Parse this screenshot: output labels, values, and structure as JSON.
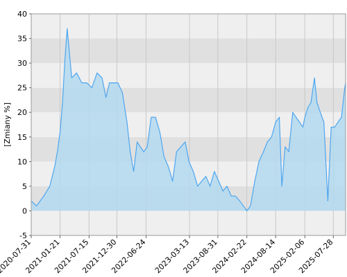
{
  "chart_data": {
    "type": "area",
    "title": "",
    "xlabel": "",
    "ylabel": "[Zmiany %]",
    "ylim": [
      -5,
      40
    ],
    "yticks": [
      -5,
      0,
      5,
      10,
      15,
      20,
      25,
      30,
      35,
      40
    ],
    "yticklabels": [
      "-5",
      "0",
      "5",
      "10",
      "15",
      "20",
      "25",
      "30",
      "35",
      "40"
    ],
    "xlim": [
      "2020-07-31",
      "2025-10-10"
    ],
    "xticks": [
      "2020-07-31",
      "2021-01-21",
      "2021-07-15",
      "2021-12-30",
      "2022-06-24",
      "2023-03-13",
      "2023-08-31",
      "2024-02-22",
      "2024-08-14",
      "2025-02-06",
      "2025-07-28"
    ],
    "grid": true,
    "legend": "none",
    "colors": {
      "line": "#4da6f0",
      "fill": "#b3d9ef",
      "band_light": "#efefef",
      "band_dark": "#e0e0e0",
      "grid_v": "#c8c8c8",
      "frame": "#999999"
    },
    "series": [
      {
        "x": [
          "2020-07-31",
          "2020-09-01",
          "2020-10-15",
          "2020-11-20",
          "2020-12-20",
          "2021-01-05",
          "2021-01-21",
          "2021-02-05",
          "2021-02-18",
          "2021-03-05",
          "2021-04-01",
          "2021-05-01",
          "2021-06-01",
          "2021-07-01",
          "2021-08-01",
          "2021-09-01",
          "2021-10-01",
          "2021-10-25",
          "2021-11-15",
          "2021-12-10",
          "2022-01-05",
          "2022-02-01",
          "2022-03-01",
          "2022-03-20",
          "2022-04-10",
          "2022-05-01",
          "2022-05-20",
          "2022-06-10",
          "2022-07-01",
          "2022-07-25",
          "2022-08-20",
          "2022-09-15",
          "2022-10-10",
          "2022-11-05",
          "2022-12-01",
          "2022-12-25",
          "2023-01-20",
          "2023-02-15",
          "2023-03-10",
          "2023-04-05",
          "2023-05-01",
          "2023-05-25",
          "2023-06-20",
          "2023-07-15",
          "2023-08-10",
          "2023-09-05",
          "2023-10-01",
          "2023-10-25",
          "2023-11-20",
          "2023-12-15",
          "2024-01-10",
          "2024-02-01",
          "2024-02-22",
          "2024-03-15",
          "2024-04-10",
          "2024-05-05",
          "2024-06-01",
          "2024-06-25",
          "2024-07-20",
          "2024-08-14",
          "2024-09-05",
          "2024-09-20",
          "2024-10-10",
          "2024-11-01",
          "2024-11-25",
          "2024-12-15",
          "2025-01-05",
          "2025-01-25",
          "2025-02-06",
          "2025-02-25",
          "2025-03-15",
          "2025-04-05",
          "2025-04-20",
          "2025-05-10",
          "2025-06-01",
          "2025-06-25",
          "2025-07-15",
          "2025-08-05",
          "2025-08-25",
          "2025-09-15",
          "2025-10-05",
          "2025-10-10"
        ],
        "values": [
          2,
          1,
          3,
          5,
          9,
          12,
          16,
          22,
          30,
          37,
          27,
          28,
          26,
          26,
          25,
          28,
          27,
          23,
          26,
          26,
          26,
          24,
          18,
          12,
          8,
          14,
          13,
          12,
          13,
          19,
          19,
          16,
          11,
          9,
          6,
          12,
          13,
          14,
          10,
          8,
          5,
          6,
          7,
          5,
          8,
          6,
          4,
          5,
          3,
          3,
          2,
          1,
          0,
          1,
          6,
          10,
          12,
          14,
          15,
          18,
          19,
          5,
          13,
          12,
          20,
          19,
          18,
          17,
          19,
          21,
          22,
          27,
          22,
          20,
          18,
          2,
          17,
          17,
          18,
          19,
          25,
          26
        ]
      }
    ]
  }
}
